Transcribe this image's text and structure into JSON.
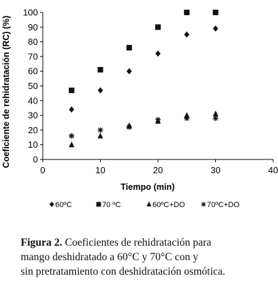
{
  "chart_data": {
    "type": "scatter",
    "xlabel": "Tiempo (min)",
    "ylabel": "Coeficiente de rehidratación (RC) (%)",
    "xlim": [
      0,
      40
    ],
    "ylim": [
      0,
      100
    ],
    "x_ticks": [
      "0",
      "10",
      "20",
      "30",
      "40"
    ],
    "y_ticks": [
      "0",
      "10",
      "20",
      "30",
      "40",
      "50",
      "60",
      "70",
      "80",
      "90",
      "100"
    ],
    "grid": false,
    "legend_position": "bottom",
    "series": [
      {
        "name": "60ºC",
        "marker": "diamond",
        "x": [
          5,
          10,
          15,
          20,
          25,
          30
        ],
        "y": [
          34,
          47,
          60,
          72,
          85,
          89
        ]
      },
      {
        "name": "70 ºC",
        "marker": "square",
        "x": [
          5,
          10,
          15,
          20,
          25,
          30
        ],
        "y": [
          47,
          61,
          76,
          90,
          100,
          100
        ]
      },
      {
        "name": "60ºC+DO",
        "marker": "triangle",
        "x": [
          5,
          10,
          15,
          20,
          25,
          30
        ],
        "y": [
          10,
          16,
          23,
          26,
          30,
          31
        ]
      },
      {
        "name": "70ºC+DO",
        "marker": "star",
        "x": [
          5,
          10,
          15,
          20,
          25,
          30
        ],
        "y": [
          16,
          20,
          22,
          27,
          28,
          28
        ]
      }
    ]
  },
  "caption": {
    "label": "Figura 2.",
    "line1": " Coeficientes de rehidratación para",
    "line2": "mango deshidratado a 60°C y 70°C con y",
    "line3": "sin pretratamiento con deshidratación osmótica."
  }
}
